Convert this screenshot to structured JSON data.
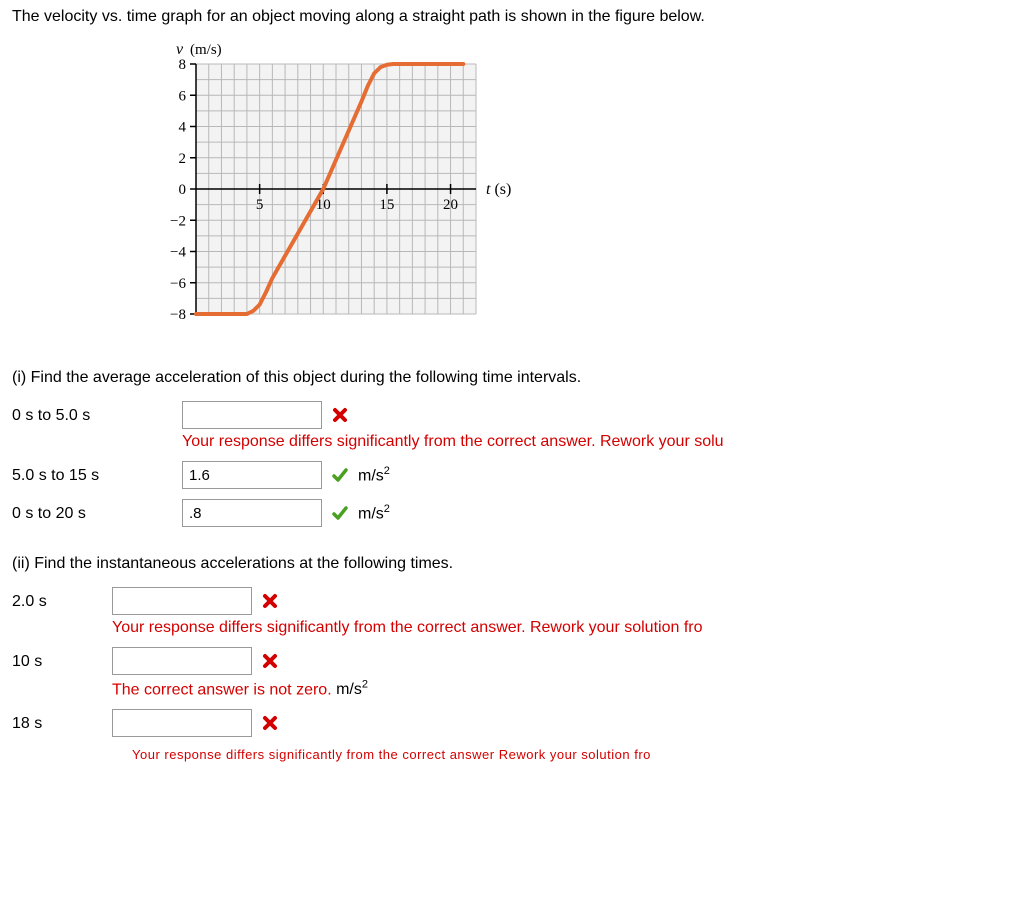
{
  "intro_text": "The velocity vs. time graph for an object moving along a straight path is shown in the figure below.",
  "graph": {
    "ylabel": "v (m/s)",
    "xlabel": "t (s)",
    "xlim": [
      0,
      22
    ],
    "ylim": [
      -8,
      8
    ],
    "ytick_values": [
      8,
      6,
      4,
      2,
      0,
      -2,
      -4,
      -6,
      -8
    ],
    "ytick_labels": [
      "8",
      "6",
      "4",
      "2",
      "0",
      "−2",
      "−4",
      "−6",
      "−8"
    ],
    "xtick_values": [
      5,
      10,
      15,
      20
    ],
    "xtick_labels": [
      "5",
      "10",
      "15",
      "20"
    ],
    "background_color": "#f3f3f3",
    "grid_color": "#b8b8b8",
    "axis_color": "#000000",
    "line_color": "#e56c32",
    "line_width": 4,
    "grid_step_x": 1,
    "grid_step_y": 1,
    "curve_points": [
      [
        0,
        -8
      ],
      [
        4,
        -8
      ],
      [
        4.5,
        -7.8
      ],
      [
        5,
        -7.4
      ],
      [
        5.5,
        -6.6
      ],
      [
        6,
        -5.7
      ],
      [
        10,
        0
      ],
      [
        13,
        5.6
      ],
      [
        13.5,
        6.6
      ],
      [
        14,
        7.4
      ],
      [
        14.5,
        7.8
      ],
      [
        15,
        7.95
      ],
      [
        15.5,
        8
      ],
      [
        21,
        8
      ]
    ]
  },
  "part_i": {
    "prompt": "(i) Find the average acceleration of this object during the following time intervals.",
    "rows": [
      {
        "label": "0 s to 5.0 s",
        "value": "",
        "status": "wrong",
        "unit": "",
        "feedback": "Your response differs significantly from the correct answer. Rework your solu"
      },
      {
        "label": "5.0 s to 15 s",
        "value": "1.6",
        "status": "correct",
        "unit": "m/s2",
        "feedback": ""
      },
      {
        "label": "0 s to 20 s",
        "value": ".8",
        "status": "correct",
        "unit": "m/s2",
        "feedback": ""
      }
    ]
  },
  "part_ii": {
    "prompt": "(ii) Find the instantaneous accelerations at the following times.",
    "rows": [
      {
        "label": "2.0 s",
        "value": "",
        "status": "wrong",
        "unit": "",
        "feedback": "Your response differs significantly from the correct answer. Rework your solution fro"
      },
      {
        "label": "10 s",
        "value": "",
        "status": "wrong",
        "unit": "",
        "feedback": "The correct answer is not zero.",
        "feedback_unit": "m/s2"
      },
      {
        "label": "18 s",
        "value": "",
        "status": "wrong",
        "unit": "",
        "feedback": ""
      }
    ]
  },
  "cutoff_bottom": "Your response differs significantly from the correct answer Rework your solution fro",
  "colors": {
    "error_text": "#d40000",
    "check_green": "#4aa020",
    "x_red": "#d40000"
  }
}
